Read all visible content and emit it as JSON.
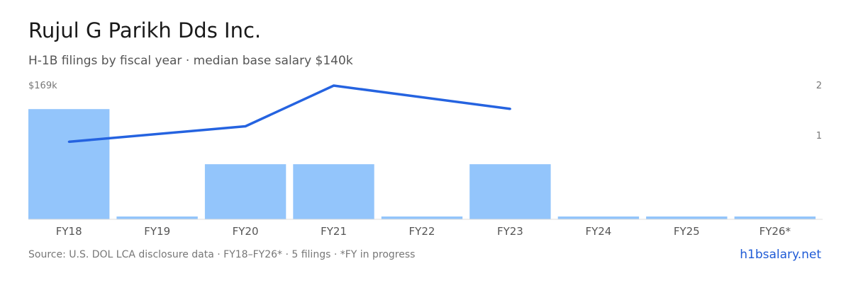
{
  "header": {
    "title": "Rujul G Parikh Dds Inc.",
    "subtitle": "H-1B filings by fiscal year · median base salary $140k"
  },
  "footer": {
    "source": "Source: U.S. DOL LCA disclosure data · FY18–FY26* · 5 filings · *FY in progress",
    "site": "h1bsalary.net"
  },
  "colors": {
    "bar": "#93c5fb",
    "line": "#2563e0",
    "axis": "#dddddd"
  },
  "chart_data": {
    "type": "bar",
    "categories": [
      "FY18",
      "FY19",
      "FY20",
      "FY21",
      "FY22",
      "FY23",
      "FY24",
      "FY25",
      "FY26*"
    ],
    "series": [
      {
        "type": "bar",
        "axis": "right",
        "values": [
          2,
          0,
          1,
          1,
          0,
          1,
          0,
          0,
          0
        ]
      },
      {
        "type": "line",
        "axis": "left",
        "values": [
          140,
          null,
          148,
          169,
          null,
          157,
          null,
          null,
          null
        ]
      }
    ],
    "left_axis": {
      "label": "$169k",
      "max": 169,
      "unit": "k"
    },
    "right_axis": {
      "ticks": [
        "1",
        "2"
      ],
      "max": 2
    },
    "grid": false,
    "legend": "none"
  }
}
